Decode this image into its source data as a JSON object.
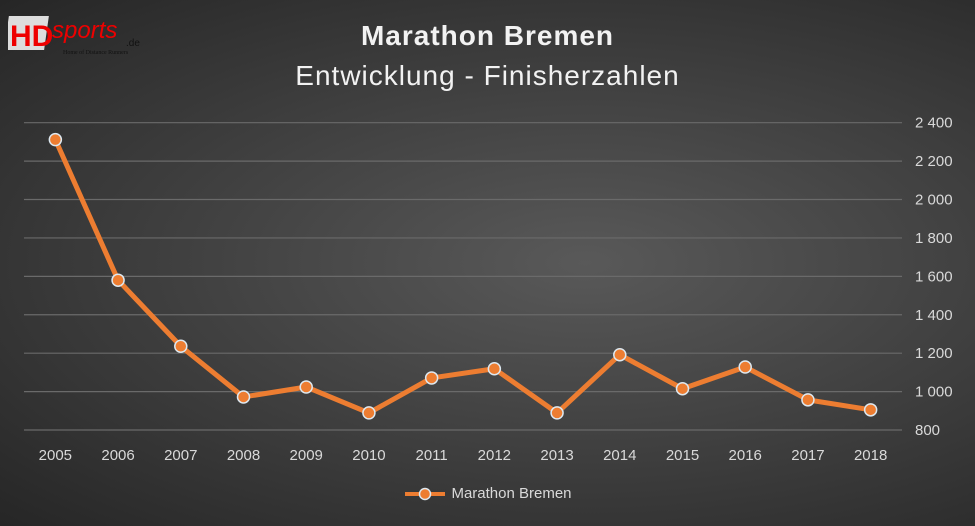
{
  "logo": {
    "text": "HDsports.de",
    "tagline": "Home of Distance Runners"
  },
  "chart_data": {
    "type": "line",
    "title": "Marathon Bremen",
    "subtitle": "Entwicklung - Finisherzahlen",
    "categories": [
      "2005",
      "2006",
      "2007",
      "2008",
      "2009",
      "2010",
      "2011",
      "2012",
      "2013",
      "2014",
      "2015",
      "2016",
      "2017",
      "2018"
    ],
    "series": [
      {
        "name": "Marathon Bremen",
        "values": [
          2312,
          1580,
          1236,
          972,
          1024,
          889,
          1071,
          1119,
          889,
          1192,
          1015,
          1128,
          957,
          905
        ],
        "color": "#ed7d31"
      }
    ],
    "ylim": [
      800,
      2400
    ],
    "yticks": [
      800,
      1000,
      1200,
      1400,
      1600,
      1800,
      2000,
      2200,
      2400
    ],
    "ytick_labels": [
      "800",
      "1 000",
      "1 200",
      "1 400",
      "1 600",
      "1 800",
      "2 000",
      "2 200",
      "2 400"
    ],
    "y_axis_side": "right",
    "grid": true,
    "legend": "bottom"
  }
}
